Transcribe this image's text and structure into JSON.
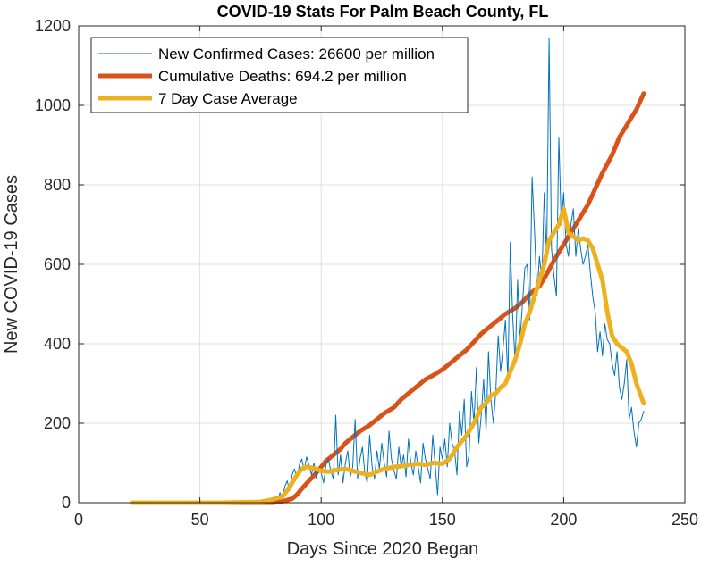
{
  "chart_data": {
    "type": "line",
    "title": "COVID-19 Stats For Palm Beach County, FL",
    "xlabel": "Days Since 2020 Began",
    "ylabel": "New COVID-19 Cases",
    "xlim": [
      0,
      250
    ],
    "ylim": [
      0,
      1200
    ],
    "xticks": [
      0,
      50,
      100,
      150,
      200,
      250
    ],
    "yticks": [
      0,
      200,
      400,
      600,
      800,
      1000,
      1200
    ],
    "grid": true,
    "legend_position": "top-left",
    "series": [
      {
        "name": "New Confirmed Cases: 26600 per million",
        "color": "#0072BD",
        "line_style": "thin",
        "x": [
          22,
          30,
          40,
          50,
          60,
          70,
          75,
          78,
          80,
          81,
          82,
          83,
          84,
          85,
          86,
          87,
          88,
          89,
          90,
          91,
          92,
          93,
          94,
          95,
          96,
          97,
          98,
          99,
          100,
          101,
          102,
          103,
          104,
          105,
          106,
          107,
          108,
          109,
          110,
          111,
          112,
          113,
          114,
          115,
          116,
          117,
          118,
          119,
          120,
          121,
          122,
          123,
          124,
          125,
          126,
          127,
          128,
          129,
          130,
          131,
          132,
          133,
          134,
          135,
          136,
          137,
          138,
          139,
          140,
          141,
          142,
          143,
          144,
          145,
          146,
          147,
          148,
          149,
          150,
          151,
          152,
          153,
          154,
          155,
          156,
          157,
          158,
          159,
          160,
          161,
          162,
          163,
          164,
          165,
          166,
          167,
          168,
          169,
          170,
          171,
          172,
          173,
          174,
          175,
          176,
          177,
          178,
          179,
          180,
          181,
          182,
          183,
          184,
          185,
          186,
          187,
          188,
          189,
          190,
          191,
          192,
          193,
          194,
          195,
          196,
          197,
          198,
          199,
          200,
          201,
          202,
          203,
          204,
          205,
          206,
          207,
          208,
          209,
          210,
          211,
          212,
          213,
          214,
          215,
          216,
          217,
          218,
          219,
          220,
          221,
          222,
          223,
          224,
          225,
          226,
          227,
          228,
          229,
          230,
          231,
          232,
          233
        ],
        "y": [
          0,
          0,
          0,
          0,
          0,
          0,
          2,
          5,
          8,
          12,
          5,
          25,
          10,
          40,
          55,
          30,
          70,
          85,
          60,
          95,
          110,
          80,
          115,
          95,
          70,
          100,
          60,
          90,
          75,
          50,
          95,
          110,
          80,
          60,
          220,
          70,
          120,
          50,
          100,
          130,
          65,
          90,
          210,
          60,
          110,
          140,
          75,
          50,
          170,
          90,
          60,
          130,
          85,
          150,
          100,
          65,
          180,
          110,
          80,
          60,
          140,
          90,
          120,
          65,
          160,
          100,
          70,
          130,
          90,
          50,
          150,
          110,
          85,
          60,
          170,
          95,
          20,
          140,
          110,
          160,
          90,
          200,
          150,
          130,
          70,
          230,
          170,
          260,
          90,
          120,
          280,
          200,
          340,
          150,
          220,
          310,
          180,
          380,
          260,
          200,
          280,
          420,
          330,
          390,
          460,
          310,
          655,
          470,
          350,
          560,
          410,
          500,
          590,
          600,
          460,
          820,
          680,
          520,
          620,
          560,
          780,
          610,
          1170,
          640,
          570,
          520,
          920,
          700,
          780,
          650,
          620,
          700,
          740,
          620,
          690,
          640,
          600,
          620,
          650,
          580,
          520,
          480,
          380,
          430,
          370,
          450,
          410,
          400,
          350,
          320,
          380,
          290,
          260,
          300,
          360,
          210,
          240,
          180,
          140,
          200,
          210,
          230
        ]
      },
      {
        "name": "Cumulative Deaths: 694.2 per million",
        "color": "#D95319",
        "line_style": "thick",
        "x": [
          22,
          40,
          60,
          80,
          84,
          88,
          90,
          92,
          95,
          98,
          100,
          102,
          105,
          108,
          110,
          113,
          116,
          120,
          123,
          126,
          130,
          133,
          136,
          140,
          143,
          146,
          150,
          153,
          156,
          160,
          163,
          166,
          170,
          173,
          176,
          180,
          183,
          186,
          190,
          193,
          196,
          200,
          203,
          206,
          210,
          213,
          216,
          220,
          223,
          226,
          230,
          233
        ],
        "y": [
          0,
          0,
          0,
          0,
          3,
          10,
          20,
          35,
          55,
          75,
          90,
          105,
          120,
          135,
          150,
          165,
          180,
          195,
          210,
          225,
          240,
          260,
          275,
          295,
          310,
          320,
          335,
          350,
          365,
          385,
          405,
          425,
          445,
          460,
          475,
          490,
          505,
          525,
          545,
          575,
          610,
          650,
          680,
          710,
          750,
          790,
          830,
          875,
          920,
          950,
          990,
          1030
        ]
      },
      {
        "name": "7 Day Case Average",
        "color": "#EDB120",
        "line_style": "thick",
        "x": [
          22,
          40,
          60,
          75,
          80,
          84,
          86,
          88,
          90,
          92,
          94,
          96,
          98,
          100,
          103,
          106,
          110,
          113,
          116,
          120,
          123,
          126,
          130,
          133,
          136,
          140,
          143,
          146,
          150,
          153,
          156,
          160,
          163,
          166,
          168,
          170,
          172,
          174,
          176,
          178,
          180,
          182,
          184,
          186,
          188,
          190,
          192,
          194,
          196,
          198,
          200,
          202,
          204,
          206,
          208,
          210,
          212,
          214,
          216,
          218,
          220,
          222,
          224,
          226,
          228,
          230,
          233
        ],
        "y": [
          0,
          0,
          0,
          2,
          8,
          15,
          30,
          50,
          70,
          85,
          90,
          88,
          85,
          80,
          78,
          82,
          85,
          80,
          75,
          70,
          78,
          85,
          90,
          92,
          95,
          98,
          95,
          100,
          98,
          110,
          140,
          170,
          200,
          240,
          250,
          270,
          275,
          290,
          300,
          330,
          360,
          400,
          450,
          480,
          520,
          560,
          600,
          660,
          680,
          700,
          740,
          680,
          670,
          660,
          665,
          660,
          640,
          600,
          560,
          480,
          420,
          400,
          390,
          380,
          350,
          300,
          250
        ]
      }
    ]
  }
}
